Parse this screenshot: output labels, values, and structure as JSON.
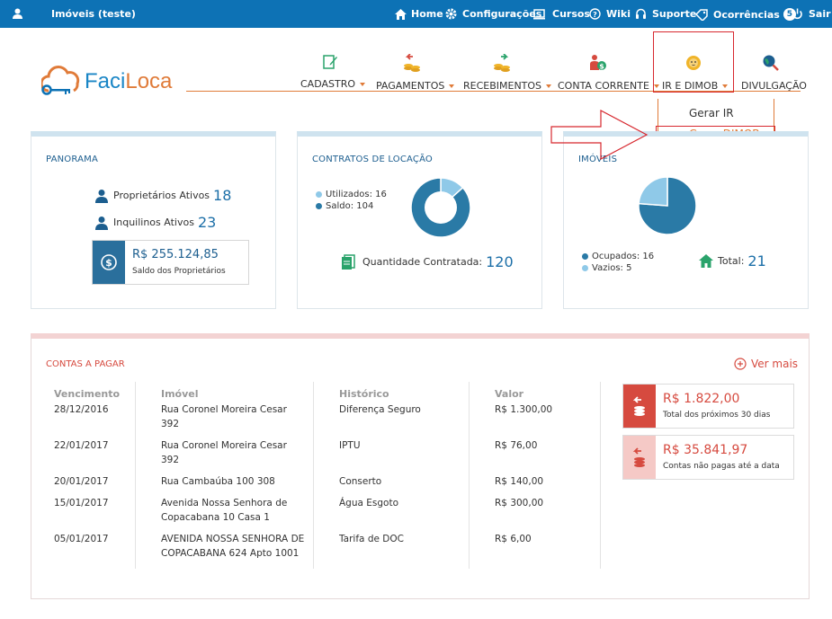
{
  "topbar": {
    "account": "Imóveis (teste)",
    "home": "Home",
    "config": "Configurações",
    "cursos": "Cursos",
    "wiki": "Wiki",
    "suporte": "Suporte",
    "ocorrencias": "Ocorrências",
    "ocorrencias_count": "5",
    "sair": "Sair"
  },
  "logo": {
    "part1": "Faci",
    "part2": "Loca"
  },
  "nav": {
    "cadastro": "CADASTRO",
    "pagamentos": "PAGAMENTOS",
    "recebimentos": "RECEBIMENTOS",
    "conta_corrente": "CONTA CORRENTE",
    "ir_dimob": "IR E DIMOB",
    "divulgacao": "DIVULGAÇÃO"
  },
  "dropdown": {
    "gerar_ir": "Gerar IR",
    "gerar_dimob": "Gerar DIMOB"
  },
  "panorama": {
    "title": "PANORAMA",
    "proprietarios_label": "Proprietários Ativos",
    "proprietarios_value": "18",
    "inquilinos_label": "Inquilinos Ativos",
    "inquilinos_value": "23",
    "saldo_value": "R$ 255.124,85",
    "saldo_label": "Saldo dos Proprietários"
  },
  "contratos": {
    "title": "CONTRATOS DE LOCAÇÃO",
    "utilizados_label": "Utilizados: 16",
    "saldo_label": "Saldo: 104",
    "quantidade_label": "Quantidade Contratada:",
    "quantidade_value": "120",
    "chart": {
      "type": "pie",
      "values": [
        16,
        104
      ],
      "labels": [
        "Utilizados",
        "Saldo"
      ],
      "colors": [
        "#8fc9e8",
        "#2a7aa6"
      ]
    }
  },
  "imoveis": {
    "title": "IMÓVEIS",
    "ocupados_label": "Ocupados: 16",
    "vazios_label": "Vazios: 5",
    "total_label": "Total:",
    "total_value": "21",
    "chart": {
      "type": "pie",
      "values": [
        16,
        5
      ],
      "labels": [
        "Ocupados",
        "Vazios"
      ],
      "colors": [
        "#2a7aa6",
        "#8fc9e8"
      ]
    }
  },
  "contas": {
    "title": "CONTAS A PAGAR",
    "ver_mais": "Ver mais",
    "headers": {
      "vencimento": "Vencimento",
      "imovel": "Imóvel",
      "historico": "Histórico",
      "valor": "Valor"
    },
    "rows": [
      {
        "vencimento": "28/12/2016",
        "imovel1": "Rua Coronel Moreira Cesar",
        "imovel2": "392",
        "historico": "Diferença Seguro",
        "valor": "R$ 1.300,00"
      },
      {
        "vencimento": "22/01/2017",
        "imovel1": "Rua Coronel Moreira Cesar",
        "imovel2": "392",
        "historico": "IPTU",
        "valor": "R$ 76,00"
      },
      {
        "vencimento": "20/01/2017",
        "imovel1": "Rua Cambaúba 100 308",
        "imovel2": "",
        "historico": "Conserto",
        "valor": "R$ 140,00"
      },
      {
        "vencimento": "15/01/2017",
        "imovel1": "Avenida Nossa Senhora de",
        "imovel2": "Copacabana 10 Casa 1",
        "historico": "Água Esgoto",
        "valor": "R$ 300,00"
      },
      {
        "vencimento": "05/01/2017",
        "imovel1": "AVENIDA NOSSA SENHORA DE",
        "imovel2": "COPACABANA 624 Apto 1001",
        "historico": "Tarifa de DOC",
        "valor": "R$ 6,00"
      }
    ],
    "summary1": {
      "value": "R$ 1.822,00",
      "label": "Total dos próximos 30 dias"
    },
    "summary2": {
      "value": "R$ 35.841,97",
      "label": "Contas não pagas até a data"
    }
  },
  "colors": {
    "topbar": "#0d72b5",
    "accent": "#e07b39",
    "dark_blue": "#2a7aa6",
    "light_blue": "#8fc9e8",
    "red": "#d64a3f",
    "highlight": "#d7282f"
  }
}
